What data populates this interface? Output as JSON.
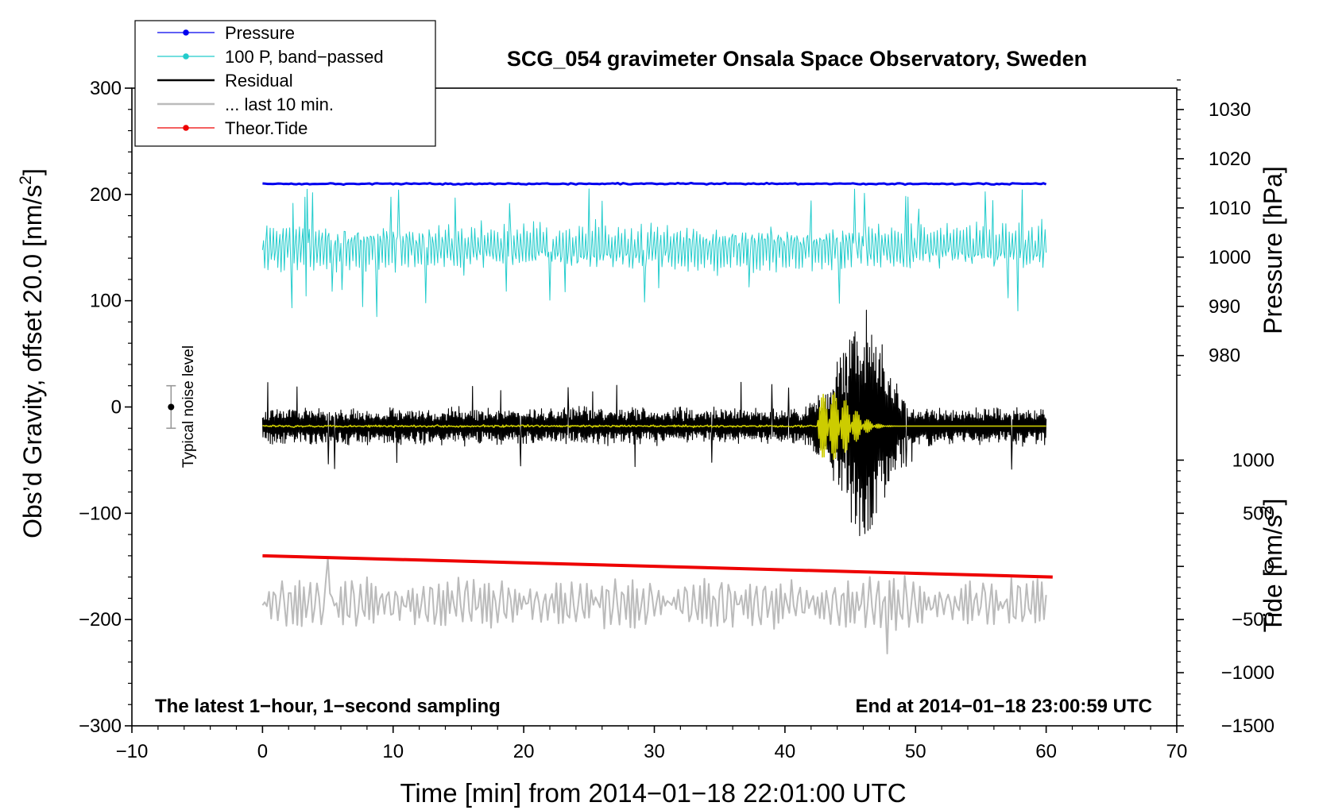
{
  "chart_data": {
    "type": "line",
    "title": "SCG_054 gravimeter Onsala Space Observatory, Sweden",
    "xlabel": "Time [min] from 2014−01−18 22:01:00 UTC",
    "ylabel_left_pre": "Obs’d Gravity, offset 20.0 [nm/s",
    "ylabel_left_sup": "2",
    "ylabel_left_post": "]",
    "ylabel_pressure": "Pressure [hPa]",
    "ylabel_tide_pre": "Tide [nm/s",
    "ylabel_tide_sup": "2",
    "ylabel_tide_post": "]",
    "xlim": [
      -10,
      70
    ],
    "ylim": [
      -300,
      300
    ],
    "x_ticks": [
      -10,
      0,
      10,
      20,
      30,
      40,
      50,
      60,
      70
    ],
    "y_ticks": [
      -300,
      -200,
      -100,
      0,
      100,
      200,
      300
    ],
    "pressure_ticks": [
      980,
      990,
      1000,
      1010,
      1020,
      1030
    ],
    "tide_ticks": [
      -1500,
      -1000,
      -500,
      0,
      500,
      1000
    ],
    "tick_labels": {
      "x": [
        "−10",
        "0",
        "10",
        "20",
        "30",
        "40",
        "50",
        "60",
        "70"
      ],
      "y": [
        "−300",
        "−200",
        "−100",
        "0",
        "100",
        "200",
        "300"
      ],
      "pressure": [
        "980",
        "990",
        "1000",
        "1010",
        "1020",
        "1030"
      ],
      "tide": [
        "−1500",
        "−1000",
        "−500",
        "0",
        "500",
        "1000"
      ]
    },
    "annotations": {
      "bottom_left": "The latest 1−hour, 1−second sampling",
      "bottom_right": "End at 2014−01−18 23:00:59 UTC",
      "noise_label": "Typical noise level"
    },
    "noise_bar": {
      "x": -7,
      "y": 0,
      "half_range": 20
    },
    "legend": {
      "placement": "top-left",
      "entries": [
        {
          "name": "Pressure",
          "color": "#0000ee",
          "marker": true
        },
        {
          "name": "100 P, band−passed",
          "color": "#22cccc",
          "marker": true
        },
        {
          "name": "Residual",
          "color": "#000000",
          "marker": false
        },
        {
          "name": "... last 10 min.",
          "color": "#bbbbbb",
          "marker": false
        },
        {
          "name": "Theor.Tide",
          "color": "#ee0000",
          "marker": true
        }
      ]
    },
    "series": [
      {
        "name": "Pressure",
        "color": "#0000ee",
        "axis": "left",
        "x_range": [
          0,
          60
        ],
        "level": 210,
        "noise": 1
      },
      {
        "name": "100 P, band−passed",
        "color": "#22cccc",
        "axis": "left",
        "x_range": [
          0,
          60
        ],
        "level": 150,
        "amplitude": 20,
        "peak_max": 205,
        "peak_min": 85
      },
      {
        "name": "Residual",
        "color": "#000000",
        "axis": "left",
        "x_range": [
          0,
          60
        ],
        "level": -18,
        "amplitude": 15,
        "event_start": 41.5,
        "event_peak": 46,
        "event_max": 98,
        "event_min": -128
      },
      {
        "name": "Filtered residual",
        "color": "#cccc00",
        "axis": "left",
        "x_range": [
          0,
          60
        ],
        "level": -18,
        "event_start": 42.5,
        "event_peak": 43.5,
        "event_max": 14,
        "event_min": -50
      },
      {
        "name": "... last 10 min.",
        "color": "#bbbbbb",
        "axis": "left",
        "x_range": [
          0,
          60
        ],
        "level": -185,
        "amplitude": 22,
        "peak_max": -142,
        "peak_min": -232
      },
      {
        "name": "Theor.Tide",
        "color": "#ee0000",
        "axis": "tide",
        "x": [
          0,
          60.5
        ],
        "y": [
          100,
          -100
        ]
      }
    ]
  }
}
